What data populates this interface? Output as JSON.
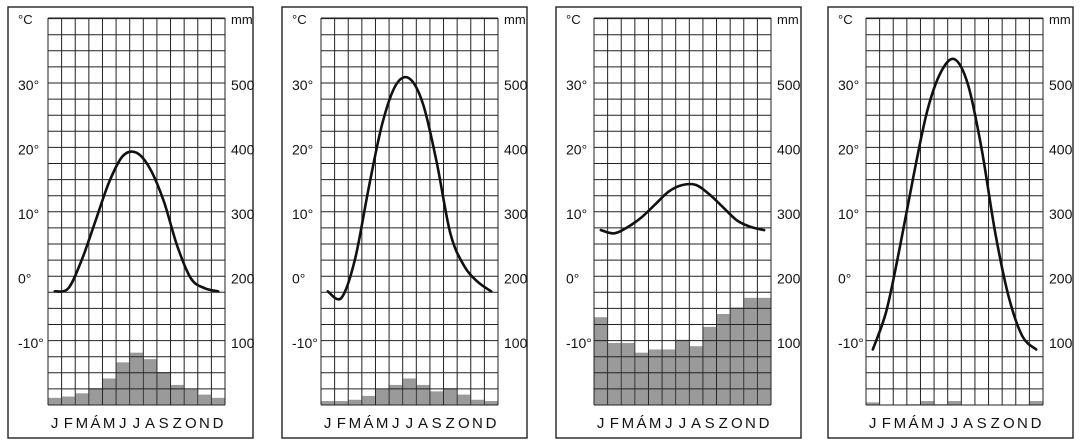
{
  "chart_data": [
    {
      "type": "bar+line",
      "temp_unit": "°C",
      "precip_unit": "mm",
      "months": [
        "J",
        "F",
        "M",
        "Á",
        "M",
        "J",
        "J",
        "A",
        "S",
        "Z",
        "O",
        "N",
        "D"
      ],
      "temp_ticks": [
        "30°",
        "20°",
        "10°",
        "0°",
        "-10°"
      ],
      "precip_ticks": [
        "500",
        "400",
        "300",
        "200",
        "100"
      ],
      "temp_ylim": [
        -20,
        40
      ],
      "precip_ylim": [
        0,
        600
      ],
      "temperature": [
        -2,
        -1.5,
        3,
        9,
        15,
        19,
        19.5,
        17,
        12,
        5,
        0,
        -1.5,
        -2
      ],
      "precipitation": [
        15,
        17,
        22,
        30,
        45,
        70,
        85,
        75,
        55,
        35,
        28,
        20,
        15
      ]
    },
    {
      "type": "bar+line",
      "temp_unit": "°C",
      "precip_unit": "mm",
      "months": [
        "J",
        "F",
        "M",
        "Á",
        "M",
        "J",
        "J",
        "A",
        "S",
        "Z",
        "O",
        "N",
        "D"
      ],
      "temp_ticks": [
        "30°",
        "20°",
        "10°",
        "0°",
        "-10°"
      ],
      "precip_ticks": [
        "500",
        "400",
        "300",
        "200",
        "100"
      ],
      "temp_ylim": [
        -20,
        40
      ],
      "precip_ylim": [
        0,
        600
      ],
      "temperature": [
        -2,
        -3,
        3,
        14,
        24,
        30,
        31,
        27,
        18,
        7,
        2,
        -0.5,
        -2
      ],
      "precipitation": [
        10,
        10,
        12,
        18,
        28,
        35,
        45,
        35,
        25,
        30,
        20,
        12,
        10
      ]
    },
    {
      "type": "bar+line",
      "temp_unit": "°C",
      "precip_unit": "mm",
      "months": [
        "J",
        "F",
        "M",
        "Á",
        "M",
        "J",
        "J",
        "A",
        "S",
        "Z",
        "O",
        "N",
        "D"
      ],
      "temp_ticks": [
        "30°",
        "20°",
        "10°",
        "0°",
        "-10°"
      ],
      "precip_ticks": [
        "500",
        "400",
        "300",
        "200",
        "100"
      ],
      "temp_ylim": [
        -20,
        40
      ],
      "precip_ylim": [
        0,
        600
      ],
      "temperature": [
        7.5,
        7,
        8,
        9.5,
        11.5,
        13.5,
        14.5,
        14.5,
        13,
        11,
        9,
        8,
        7.5
      ],
      "precipitation": [
        140,
        100,
        100,
        85,
        90,
        90,
        105,
        95,
        125,
        145,
        155,
        170,
        170
      ]
    },
    {
      "type": "bar+line",
      "temp_unit": "°C",
      "precip_unit": "mm",
      "months": [
        "J",
        "F",
        "M",
        "Á",
        "M",
        "J",
        "J",
        "A",
        "S",
        "Z",
        "O",
        "N",
        "D"
      ],
      "temp_ticks": [
        "30°",
        "20°",
        "10°",
        "0°",
        "-10°"
      ],
      "precip_ticks": [
        "500",
        "400",
        "300",
        "200",
        "100"
      ],
      "temp_ylim": [
        -20,
        40
      ],
      "precip_ylim": [
        0,
        600
      ],
      "temperature": [
        -11,
        -5,
        5,
        16,
        26,
        32,
        34,
        30,
        20,
        7,
        -3,
        -9,
        -11
      ],
      "precipitation": [
        8,
        0,
        0,
        5,
        10,
        5,
        10,
        0,
        0,
        0,
        0,
        0,
        10
      ]
    }
  ]
}
